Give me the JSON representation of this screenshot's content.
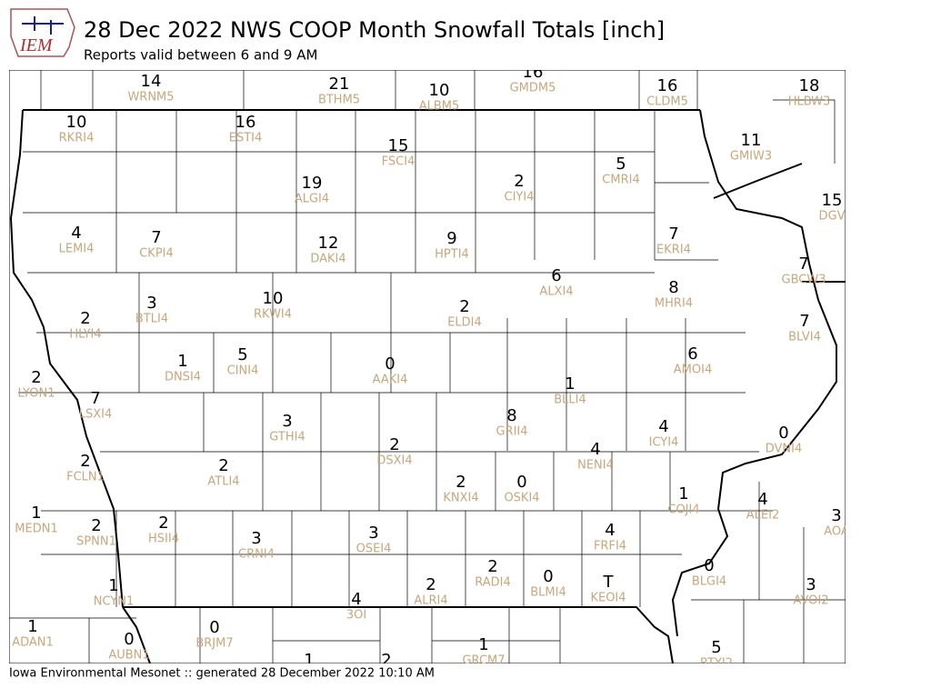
{
  "logo": "IEM",
  "title": "28 Dec 2022 NWS COOP Month Snowfall Totals [inch]",
  "subtitle": "Reports valid between 6 and 9 AM",
  "footer": "Iowa Environmental Mesonet :: generated 28 December 2022 10:10 AM",
  "stations": [
    {
      "value": 14,
      "code": "WRNM5"
    },
    {
      "value": 21,
      "code": "BTHM5"
    },
    {
      "value": 10,
      "code": "ALBM5"
    },
    {
      "value": 16,
      "code": "GMDM5"
    },
    {
      "value": 16,
      "code": "CLDM5"
    },
    {
      "value": 18,
      "code": "HLBW3"
    },
    {
      "value": 10,
      "code": "RKRI4"
    },
    {
      "value": 16,
      "code": "ESTI4"
    },
    {
      "value": 15,
      "code": "FSCI4"
    },
    {
      "value": 11,
      "code": "GMIW3"
    },
    {
      "value": 19,
      "code": "ALGI4"
    },
    {
      "value": 2,
      "code": "CIYI4"
    },
    {
      "value": 5,
      "code": "CMRI4"
    },
    {
      "value": 15,
      "code": "DGV"
    },
    {
      "value": 4,
      "code": "LEMI4"
    },
    {
      "value": 7,
      "code": "CKPI4"
    },
    {
      "value": 12,
      "code": "DAKI4"
    },
    {
      "value": 9,
      "code": "HPTI4"
    },
    {
      "value": 7,
      "code": "EKRI4"
    },
    {
      "value": 7,
      "code": "GBCW3"
    },
    {
      "value": 6,
      "code": "ALXI4"
    },
    {
      "value": 8,
      "code": "MHRI4"
    },
    {
      "value": 3,
      "code": "BTLI4"
    },
    {
      "value": 10,
      "code": "RKWI4"
    },
    {
      "value": 2,
      "code": "ELDI4"
    },
    {
      "value": 2,
      "code": "HLYI4"
    },
    {
      "value": 7,
      "code": "BLVI4"
    },
    {
      "value": 1,
      "code": "DNSI4"
    },
    {
      "value": 5,
      "code": "CINI4"
    },
    {
      "value": 0,
      "code": "AAKI4"
    },
    {
      "value": 6,
      "code": "AMOI4"
    },
    {
      "value": 2,
      "code": "LYON1"
    },
    {
      "value": 1,
      "code": "BLLI4"
    },
    {
      "value": 7,
      "code": "LSXI4"
    },
    {
      "value": 8,
      "code": "GRII4"
    },
    {
      "value": 3,
      "code": "GTHI4"
    },
    {
      "value": 4,
      "code": "ICYI4"
    },
    {
      "value": 0,
      "code": "DVNI4"
    },
    {
      "value": 2,
      "code": "DSXI4"
    },
    {
      "value": 4,
      "code": "NENI4"
    },
    {
      "value": 2,
      "code": "FCLN1"
    },
    {
      "value": 2,
      "code": "ATLI4"
    },
    {
      "value": 2,
      "code": "KNXI4"
    },
    {
      "value": 0,
      "code": "OSKI4"
    },
    {
      "value": 1,
      "code": "COJI4"
    },
    {
      "value": 4,
      "code": "ALEI2"
    },
    {
      "value": 1,
      "code": "MEDN1"
    },
    {
      "value": 2,
      "code": "SPNN1"
    },
    {
      "value": 2,
      "code": "HSII4"
    },
    {
      "value": 3,
      "code": "CRNI4"
    },
    {
      "value": 3,
      "code": "OSEI4"
    },
    {
      "value": 4,
      "code": "FRFI4"
    },
    {
      "value": 3,
      "code": "AOA"
    },
    {
      "value": 2,
      "code": "RADI4"
    },
    {
      "value": 0,
      "code": "BLMI4"
    },
    {
      "value": "T",
      "code": "KEOI4"
    },
    {
      "value": 2,
      "code": "ALRI4"
    },
    {
      "value": 0,
      "code": "BLGI4"
    },
    {
      "value": 3,
      "code": "AVOI2"
    },
    {
      "value": 1,
      "code": "NCYN1"
    },
    {
      "value": 4,
      "code": "3OI"
    },
    {
      "value": 1,
      "code": "ADAN1"
    },
    {
      "value": 0,
      "code": "AUBN1"
    },
    {
      "value": 0,
      "code": "BRJM7"
    },
    {
      "value": 1,
      "code": "GRCM7"
    },
    {
      "value": 5,
      "code": "RTYI2"
    },
    {
      "value": 1
    },
    {
      "value": 2
    }
  ]
}
